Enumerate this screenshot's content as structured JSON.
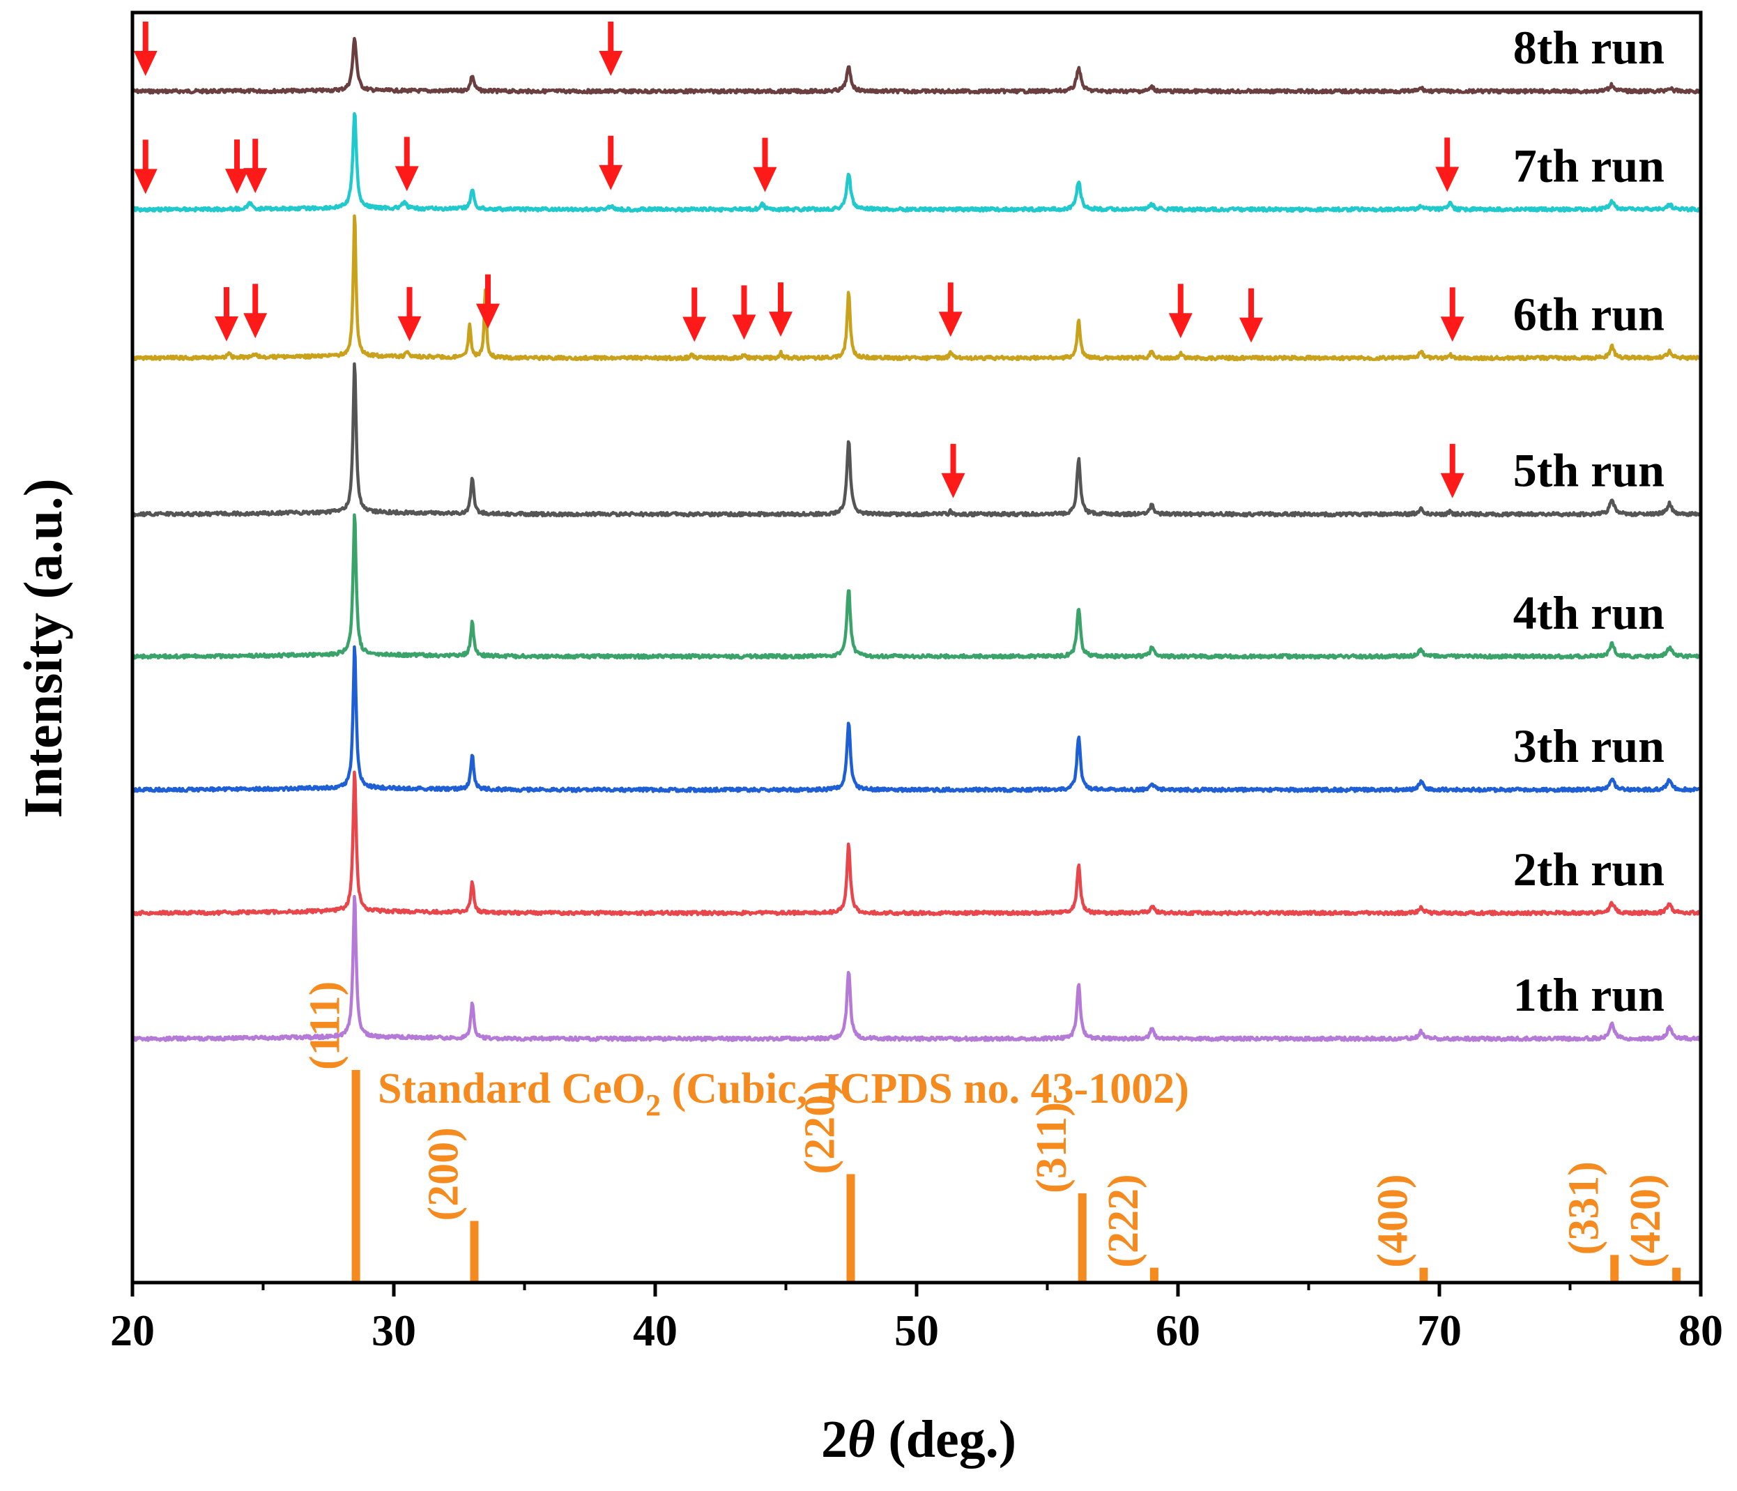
{
  "chart_data": {
    "type": "line",
    "xlabel_prefix": "2",
    "xlabel_symbol": "θ",
    "xlabel_suffix": " (deg.)",
    "ylabel": "Intensity (a.u.)",
    "xlim": [
      20,
      80
    ],
    "x_ticks": [
      20,
      30,
      40,
      50,
      60,
      70,
      80
    ],
    "y_ticks_shown": false,
    "grid": false,
    "series": [
      {
        "name": "8th run",
        "color": "#6b3f3f",
        "base_frac": 0.938,
        "peak_scale": 0.35,
        "peaks": [
          [
            28.5,
            0.09,
            1.0
          ],
          [
            33.0,
            0.08,
            0.3
          ],
          [
            47.4,
            0.1,
            0.45
          ],
          [
            56.2,
            0.1,
            0.45
          ],
          [
            59.0,
            0.1,
            0.08
          ],
          [
            69.3,
            0.1,
            0.06
          ],
          [
            76.6,
            0.12,
            0.12
          ],
          [
            78.8,
            0.12,
            0.06
          ]
        ],
        "arrows": [
          20.5,
          38.3
        ]
      },
      {
        "name": "7th run",
        "color": "#1fc9cc",
        "base_frac": 0.845,
        "peak_scale": 0.65,
        "peaks": [
          [
            28.5,
            0.08,
            1.0
          ],
          [
            33.0,
            0.08,
            0.2
          ],
          [
            47.4,
            0.09,
            0.38
          ],
          [
            56.2,
            0.09,
            0.3
          ],
          [
            59.0,
            0.1,
            0.05
          ],
          [
            69.3,
            0.1,
            0.04
          ],
          [
            76.6,
            0.12,
            0.08
          ],
          [
            78.8,
            0.12,
            0.05
          ],
          [
            30.4,
            0.08,
            0.07
          ],
          [
            24.5,
            0.08,
            0.06
          ],
          [
            38.3,
            0.08,
            0.04
          ],
          [
            44.1,
            0.08,
            0.05
          ],
          [
            70.4,
            0.06,
            0.08
          ]
        ],
        "arrows": [
          20.5,
          24.0,
          24.7,
          30.5,
          38.3,
          44.2,
          70.3
        ]
      },
      {
        "name": "6th run",
        "color": "#c9a11a",
        "base_frac": 0.728,
        "peak_scale": 0.97,
        "peaks": [
          [
            28.5,
            0.06,
            1.0
          ],
          [
            32.9,
            0.06,
            0.22
          ],
          [
            33.5,
            0.05,
            0.47
          ],
          [
            47.4,
            0.07,
            0.46
          ],
          [
            56.2,
            0.07,
            0.26
          ],
          [
            59.0,
            0.08,
            0.05
          ],
          [
            69.3,
            0.09,
            0.04
          ],
          [
            76.6,
            0.1,
            0.08
          ],
          [
            78.8,
            0.1,
            0.05
          ],
          [
            23.7,
            0.06,
            0.03
          ],
          [
            24.7,
            0.06,
            0.03
          ],
          [
            30.5,
            0.06,
            0.03
          ],
          [
            41.4,
            0.06,
            0.02
          ],
          [
            43.4,
            0.06,
            0.02
          ],
          [
            44.8,
            0.06,
            0.04
          ],
          [
            51.3,
            0.06,
            0.04
          ],
          [
            60.1,
            0.06,
            0.03
          ],
          [
            70.4,
            0.05,
            0.03
          ]
        ],
        "arrows": [
          23.6,
          24.7,
          30.6,
          33.6,
          41.5,
          43.4,
          44.8,
          51.3,
          60.1,
          62.8,
          70.5
        ]
      },
      {
        "name": "5th run",
        "color": "#555555",
        "base_frac": 0.605,
        "peak_scale": 1.0,
        "peaks": [
          [
            28.5,
            0.07,
            1.0
          ],
          [
            33.0,
            0.07,
            0.25
          ],
          [
            47.4,
            0.08,
            0.5
          ],
          [
            56.2,
            0.08,
            0.37
          ],
          [
            59.0,
            0.09,
            0.06
          ],
          [
            69.3,
            0.1,
            0.04
          ],
          [
            76.6,
            0.11,
            0.09
          ],
          [
            78.8,
            0.11,
            0.07
          ],
          [
            51.3,
            0.05,
            0.02
          ],
          [
            70.4,
            0.05,
            0.02
          ]
        ],
        "arrows": [
          51.4,
          70.5
        ]
      },
      {
        "name": "4th run",
        "color": "#3aa36a",
        "base_frac": 0.493,
        "peak_scale": 0.95,
        "peaks": [
          [
            28.5,
            0.07,
            1.0
          ],
          [
            33.0,
            0.07,
            0.24
          ],
          [
            47.4,
            0.08,
            0.48
          ],
          [
            56.2,
            0.08,
            0.34
          ],
          [
            59.0,
            0.09,
            0.06
          ],
          [
            69.3,
            0.1,
            0.05
          ],
          [
            76.6,
            0.11,
            0.09
          ],
          [
            78.8,
            0.11,
            0.06
          ]
        ],
        "arrows": []
      },
      {
        "name": "3th run",
        "color": "#1f5fd6",
        "base_frac": 0.388,
        "peak_scale": 0.95,
        "peaks": [
          [
            28.5,
            0.07,
            1.0
          ],
          [
            33.0,
            0.07,
            0.24
          ],
          [
            47.4,
            0.08,
            0.48
          ],
          [
            56.2,
            0.08,
            0.38
          ],
          [
            59.0,
            0.09,
            0.05
          ],
          [
            69.3,
            0.1,
            0.06
          ],
          [
            76.6,
            0.11,
            0.08
          ],
          [
            78.8,
            0.11,
            0.07
          ]
        ],
        "arrows": []
      },
      {
        "name": "2th run",
        "color": "#e8464a",
        "base_frac": 0.291,
        "peak_scale": 0.95,
        "peaks": [
          [
            28.5,
            0.07,
            1.0
          ],
          [
            33.0,
            0.07,
            0.22
          ],
          [
            47.4,
            0.08,
            0.48
          ],
          [
            56.2,
            0.08,
            0.33
          ],
          [
            59.0,
            0.09,
            0.05
          ],
          [
            69.3,
            0.1,
            0.04
          ],
          [
            76.6,
            0.11,
            0.07
          ],
          [
            78.8,
            0.11,
            0.06
          ]
        ],
        "arrows": []
      },
      {
        "name": "1th run",
        "color": "#b57ad8",
        "base_frac": 0.192,
        "peak_scale": 0.95,
        "peaks": [
          [
            28.5,
            0.07,
            1.0
          ],
          [
            33.0,
            0.07,
            0.25
          ],
          [
            47.4,
            0.08,
            0.48
          ],
          [
            56.2,
            0.08,
            0.39
          ],
          [
            59.0,
            0.09,
            0.07
          ],
          [
            69.3,
            0.1,
            0.05
          ],
          [
            76.6,
            0.11,
            0.1
          ],
          [
            78.8,
            0.11,
            0.08
          ]
        ],
        "arrows": []
      }
    ],
    "reference": {
      "label_main": "Standard CeO",
      "label_sub": "2",
      "label_rest": " (Cubic, JCPDS no. 43-1002)",
      "color": "#f58a1f",
      "lines": [
        {
          "x": 28.55,
          "intensity": 100,
          "hkl": "(111)"
        },
        {
          "x": 33.08,
          "intensity": 29,
          "hkl": "(200)"
        },
        {
          "x": 47.48,
          "intensity": 51,
          "hkl": "(220)"
        },
        {
          "x": 56.34,
          "intensity": 42,
          "hkl": "(311)"
        },
        {
          "x": 59.09,
          "intensity": 7,
          "hkl": "(222)"
        },
        {
          "x": 69.4,
          "intensity": 7,
          "hkl": "(400)"
        },
        {
          "x": 76.7,
          "intensity": 13,
          "hkl": "(331)"
        },
        {
          "x": 79.07,
          "intensity": 7,
          "hkl": "(420)"
        }
      ]
    },
    "arrow_color": "#ff1a1a"
  }
}
